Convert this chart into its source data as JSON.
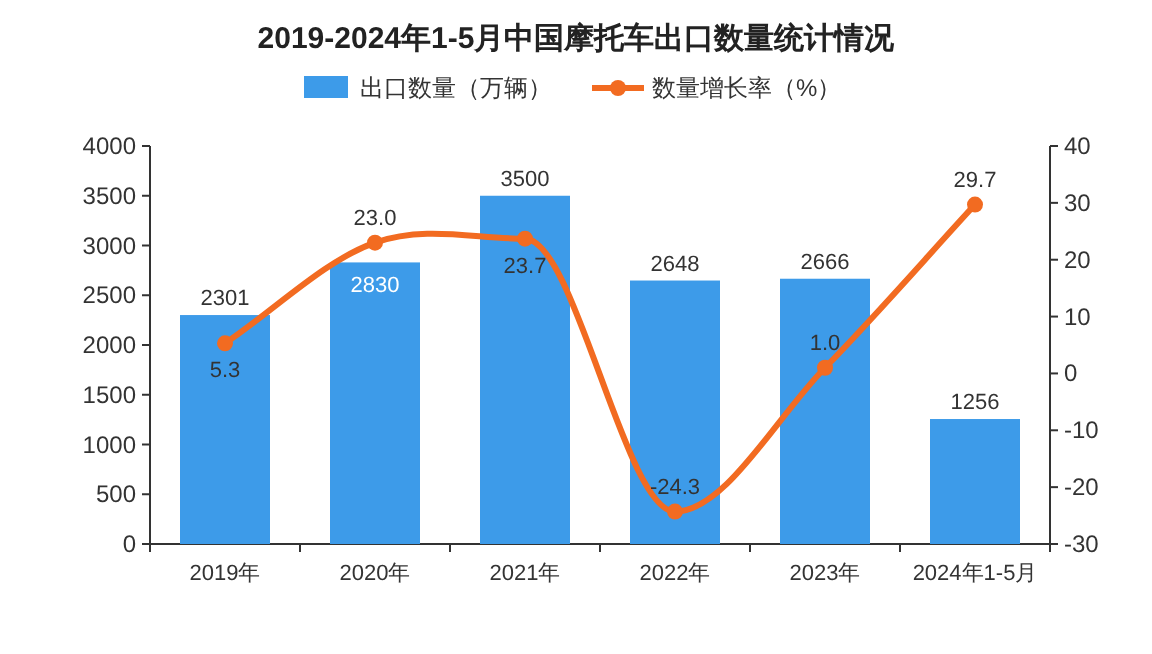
{
  "chart_data": {
    "type": "bar",
    "title": "2019-2024年1-5月中国摩托车出口数量统计情况",
    "categories": [
      "2019年",
      "2020年",
      "2021年",
      "2022年",
      "2023年",
      "2024年1-5月"
    ],
    "series": [
      {
        "name": "出口数量（万辆）",
        "color": "#3d9be9",
        "values": [
          2301,
          2830,
          3500,
          2648,
          2666,
          1256
        ]
      },
      {
        "name": "数量增长率（%）",
        "type": "line",
        "axis": "y2",
        "color": "#f26b21",
        "values": [
          5.3,
          23.0,
          23.7,
          -24.3,
          1.0,
          29.7
        ],
        "value_labels": [
          "5.3",
          "23.0",
          "23.7",
          "-24.3",
          "1.0",
          "29.7"
        ]
      }
    ],
    "data_labels": true,
    "marker": "circle",
    "legend": "top",
    "grid": false,
    "ylim": [
      0,
      4000
    ],
    "yticks": [
      0,
      500,
      1000,
      1500,
      2000,
      2500,
      3000,
      3500,
      4000
    ],
    "y2lim": [
      -30,
      40
    ],
    "y2ticks": [
      -30,
      -20,
      -10,
      0,
      10,
      20,
      30,
      40
    ]
  }
}
